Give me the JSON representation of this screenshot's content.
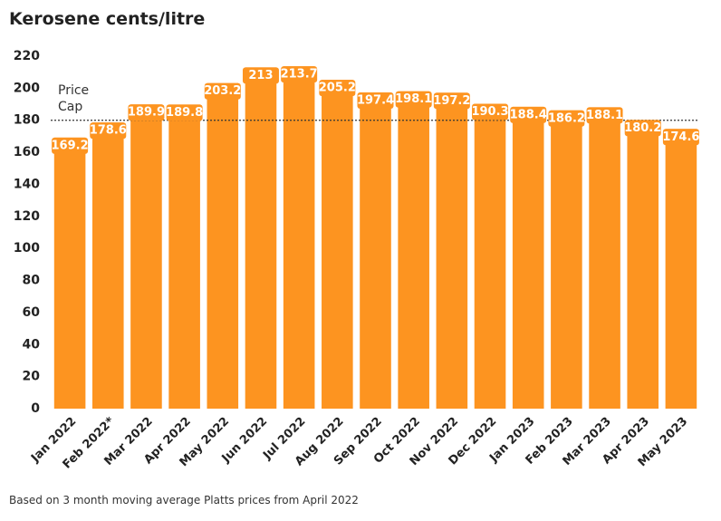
{
  "chart_data": {
    "type": "bar",
    "title": "Kerosene cents/litre",
    "categories": [
      "Jan 2022",
      "Feb 2022*",
      "Mar 2022",
      "Apr 2022",
      "May 2022",
      "Jun 2022",
      "Jul 2022",
      "Aug 2022",
      "Sep 2022",
      "Oct 2022",
      "Nov 2022",
      "Dec 2022",
      "Jan 2023",
      "Feb 2023",
      "Mar 2023",
      "Apr 2023",
      "May 2023"
    ],
    "values": [
      169.2,
      178.6,
      189.9,
      189.8,
      203.2,
      213,
      213.7,
      205.2,
      197.4,
      198.1,
      197.2,
      190.3,
      188.4,
      186.2,
      188.1,
      180.2,
      174.6
    ],
    "color": "#fd9420",
    "ylim": [
      0,
      220
    ],
    "yticks": [
      0,
      20,
      40,
      60,
      80,
      100,
      120,
      140,
      160,
      180,
      200,
      220
    ],
    "grid": false,
    "reference_line": {
      "value": 180,
      "label": "Price Cap"
    },
    "note": "Based on 3 month moving average Platts prices from April 2022"
  }
}
